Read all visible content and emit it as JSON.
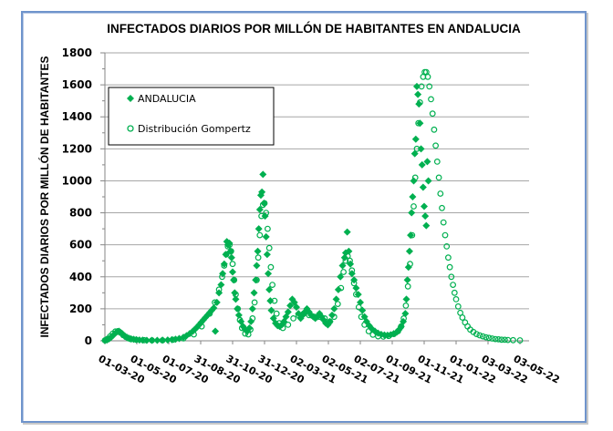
{
  "chart_data": {
    "type": "scatter",
    "title": "INFECTADOS DIARIOS POR MILLÓN DE HABITANTES EN ANDALUCIA",
    "xlabel": "",
    "ylabel": "INFECTADOS DIARIOS POR MILLÓN DE HABITANTES",
    "x_unit": "days since 01-03-20",
    "xlim": [
      0,
      793
    ],
    "ylim": [
      0,
      1800
    ],
    "yticks": [
      0,
      200,
      400,
      600,
      800,
      1000,
      1200,
      1400,
      1600,
      1800
    ],
    "ytick_labels": [
      "0",
      "200",
      "400",
      "600",
      "800",
      "1000",
      "1200",
      "1400",
      "1600",
      "1800"
    ],
    "xticks": [
      0,
      61,
      122,
      183,
      244,
      305,
      366,
      427,
      488,
      549,
      610,
      671,
      732,
      793
    ],
    "xtick_labels": [
      "01-03-20",
      "01-05-20",
      "01-07-20",
      "31-08-20",
      "31-10-20",
      "31-12-20",
      "02-03-21",
      "02-05-21",
      "02-07-21",
      "01-09-21",
      "01-11-21",
      "01-01-22",
      "03-03-22",
      "03-05-22"
    ],
    "grid": true,
    "legend_position": "top-left",
    "colors": {
      "series": "#00b050",
      "axis": "#868686",
      "grid": "#a6a6a6",
      "frame": "#6f94cc"
    },
    "series": [
      {
        "name": "ANDALUCIA",
        "marker": "diamond-filled",
        "points": [
          [
            0,
            2
          ],
          [
            4,
            5
          ],
          [
            8,
            12
          ],
          [
            12,
            22
          ],
          [
            16,
            35
          ],
          [
            20,
            48
          ],
          [
            24,
            58
          ],
          [
            27,
            60
          ],
          [
            30,
            52
          ],
          [
            34,
            42
          ],
          [
            38,
            30
          ],
          [
            42,
            22
          ],
          [
            46,
            16
          ],
          [
            50,
            12
          ],
          [
            55,
            9
          ],
          [
            60,
            7
          ],
          [
            66,
            5
          ],
          [
            72,
            4
          ],
          [
            80,
            3
          ],
          [
            90,
            3
          ],
          [
            100,
            3
          ],
          [
            110,
            4
          ],
          [
            120,
            5
          ],
          [
            128,
            7
          ],
          [
            135,
            10
          ],
          [
            142,
            14
          ],
          [
            150,
            22
          ],
          [
            156,
            32
          ],
          [
            162,
            45
          ],
          [
            168,
            60
          ],
          [
            172,
            72
          ],
          [
            176,
            85
          ],
          [
            180,
            100
          ],
          [
            184,
            115
          ],
          [
            188,
            130
          ],
          [
            192,
            145
          ],
          [
            196,
            160
          ],
          [
            200,
            175
          ],
          [
            204,
            190
          ],
          [
            208,
            205
          ],
          [
            211,
            60
          ],
          [
            214,
            240
          ],
          [
            218,
            300
          ],
          [
            222,
            350
          ],
          [
            225,
            420
          ],
          [
            228,
            480
          ],
          [
            231,
            540
          ],
          [
            233,
            620
          ],
          [
            235,
            600
          ],
          [
            238,
            610
          ],
          [
            240,
            560
          ],
          [
            242,
            520
          ],
          [
            244,
            430
          ],
          [
            246,
            380
          ],
          [
            248,
            300
          ],
          [
            250,
            260
          ],
          [
            253,
            200
          ],
          [
            256,
            160
          ],
          [
            260,
            120
          ],
          [
            264,
            90
          ],
          [
            268,
            70
          ],
          [
            272,
            60
          ],
          [
            276,
            80
          ],
          [
            279,
            120
          ],
          [
            282,
            200
          ],
          [
            285,
            300
          ],
          [
            288,
            380
          ],
          [
            290,
            470
          ],
          [
            292,
            560
          ],
          [
            294,
            700
          ],
          [
            296,
            820
          ],
          [
            298,
            910
          ],
          [
            300,
            930
          ],
          [
            302,
            1040
          ],
          [
            304,
            860
          ],
          [
            306,
            780
          ],
          [
            308,
            650
          ],
          [
            310,
            540
          ],
          [
            312,
            420
          ],
          [
            314,
            320
          ],
          [
            316,
            250
          ],
          [
            318,
            190
          ],
          [
            322,
            140
          ],
          [
            326,
            110
          ],
          [
            330,
            95
          ],
          [
            334,
            90
          ],
          [
            338,
            100
          ],
          [
            342,
            120
          ],
          [
            346,
            150
          ],
          [
            350,
            180
          ],
          [
            354,
            220
          ],
          [
            358,
            260
          ],
          [
            362,
            240
          ],
          [
            366,
            210
          ],
          [
            370,
            170
          ],
          [
            374,
            140
          ],
          [
            378,
            160
          ],
          [
            382,
            180
          ],
          [
            386,
            200
          ],
          [
            390,
            180
          ],
          [
            394,
            160
          ],
          [
            398,
            150
          ],
          [
            402,
            140
          ],
          [
            406,
            150
          ],
          [
            410,
            170
          ],
          [
            414,
            150
          ],
          [
            418,
            130
          ],
          [
            422,
            110
          ],
          [
            426,
            100
          ],
          [
            430,
            120
          ],
          [
            434,
            160
          ],
          [
            438,
            200
          ],
          [
            442,
            260
          ],
          [
            446,
            320
          ],
          [
            450,
            400
          ],
          [
            454,
            470
          ],
          [
            458,
            520
          ],
          [
            460,
            550
          ],
          [
            463,
            680
          ],
          [
            466,
            560
          ],
          [
            469,
            480
          ],
          [
            472,
            420
          ],
          [
            476,
            380
          ],
          [
            480,
            330
          ],
          [
            484,
            290
          ],
          [
            488,
            240
          ],
          [
            492,
            190
          ],
          [
            496,
            150
          ],
          [
            500,
            120
          ],
          [
            505,
            95
          ],
          [
            510,
            75
          ],
          [
            516,
            60
          ],
          [
            522,
            48
          ],
          [
            528,
            40
          ],
          [
            534,
            36
          ],
          [
            540,
            35
          ],
          [
            546,
            38
          ],
          [
            552,
            45
          ],
          [
            558,
            55
          ],
          [
            562,
            70
          ],
          [
            566,
            90
          ],
          [
            570,
            120
          ],
          [
            574,
            170
          ],
          [
            576,
            260
          ],
          [
            578,
            380
          ],
          [
            580,
            460
          ],
          [
            582,
            560
          ],
          [
            584,
            660
          ],
          [
            586,
            800
          ],
          [
            588,
            900
          ],
          [
            590,
            1000
          ],
          [
            592,
            1170
          ],
          [
            594,
            1260
          ],
          [
            596,
            1590
          ],
          [
            598,
            1540
          ],
          [
            600,
            1480
          ],
          [
            602,
            1360
          ],
          [
            604,
            1200
          ],
          [
            606,
            1100
          ],
          [
            608,
            960
          ],
          [
            610,
            840
          ],
          [
            612,
            780
          ],
          [
            614,
            720
          ],
          [
            616,
            1120
          ],
          [
            618,
            1000
          ]
        ]
      },
      {
        "name": "Distribución Gompertz",
        "marker": "circle-open",
        "points": [
          [
            0,
            3
          ],
          [
            5,
            12
          ],
          [
            10,
            28
          ],
          [
            15,
            45
          ],
          [
            20,
            58
          ],
          [
            25,
            60
          ],
          [
            30,
            50
          ],
          [
            35,
            35
          ],
          [
            40,
            24
          ],
          [
            45,
            16
          ],
          [
            50,
            10
          ],
          [
            60,
            6
          ],
          [
            75,
            4
          ],
          [
            90,
            3
          ],
          [
            110,
            3
          ],
          [
            130,
            6
          ],
          [
            150,
            15
          ],
          [
            170,
            40
          ],
          [
            185,
            90
          ],
          [
            200,
            170
          ],
          [
            210,
            240
          ],
          [
            218,
            320
          ],
          [
            224,
            400
          ],
          [
            228,
            470
          ],
          [
            232,
            540
          ],
          [
            235,
            590
          ],
          [
            238,
            600
          ],
          [
            241,
            560
          ],
          [
            244,
            480
          ],
          [
            247,
            380
          ],
          [
            250,
            290
          ],
          [
            254,
            200
          ],
          [
            258,
            130
          ],
          [
            262,
            80
          ],
          [
            268,
            45
          ],
          [
            274,
            40
          ],
          [
            278,
            70
          ],
          [
            282,
            140
          ],
          [
            286,
            240
          ],
          [
            290,
            380
          ],
          [
            293,
            520
          ],
          [
            296,
            660
          ],
          [
            299,
            780
          ],
          [
            302,
            850
          ],
          [
            305,
            860
          ],
          [
            308,
            800
          ],
          [
            311,
            700
          ],
          [
            314,
            580
          ],
          [
            317,
            460
          ],
          [
            320,
            350
          ],
          [
            324,
            250
          ],
          [
            328,
            170
          ],
          [
            333,
            110
          ],
          [
            340,
            80
          ],
          [
            350,
            100
          ],
          [
            360,
            140
          ],
          [
            370,
            160
          ],
          [
            380,
            170
          ],
          [
            390,
            160
          ],
          [
            400,
            150
          ],
          [
            410,
            150
          ],
          [
            420,
            140
          ],
          [
            430,
            120
          ],
          [
            438,
            150
          ],
          [
            445,
            230
          ],
          [
            451,
            330
          ],
          [
            456,
            430
          ],
          [
            460,
            500
          ],
          [
            464,
            530
          ],
          [
            468,
            500
          ],
          [
            472,
            440
          ],
          [
            476,
            360
          ],
          [
            480,
            290
          ],
          [
            485,
            210
          ],
          [
            490,
            150
          ],
          [
            496,
            100
          ],
          [
            504,
            60
          ],
          [
            512,
            38
          ],
          [
            522,
            28
          ],
          [
            532,
            26
          ],
          [
            542,
            30
          ],
          [
            552,
            42
          ],
          [
            560,
            60
          ],
          [
            566,
            90
          ],
          [
            571,
            140
          ],
          [
            575,
            220
          ],
          [
            579,
            340
          ],
          [
            583,
            480
          ],
          [
            587,
            660
          ],
          [
            590,
            840
          ],
          [
            593,
            1020
          ],
          [
            596,
            1200
          ],
          [
            599,
            1360
          ],
          [
            602,
            1490
          ],
          [
            605,
            1590
          ],
          [
            608,
            1650
          ],
          [
            611,
            1680
          ],
          [
            614,
            1680
          ],
          [
            617,
            1650
          ],
          [
            620,
            1590
          ],
          [
            623,
            1510
          ],
          [
            626,
            1420
          ],
          [
            629,
            1320
          ],
          [
            632,
            1220
          ],
          [
            635,
            1120
          ],
          [
            638,
            1020
          ],
          [
            641,
            920
          ],
          [
            644,
            830
          ],
          [
            647,
            740
          ],
          [
            650,
            660
          ],
          [
            653,
            590
          ],
          [
            656,
            520
          ],
          [
            659,
            460
          ],
          [
            662,
            400
          ],
          [
            665,
            350
          ],
          [
            668,
            300
          ],
          [
            671,
            260
          ],
          [
            675,
            215
          ],
          [
            679,
            175
          ],
          [
            683,
            145
          ],
          [
            688,
            115
          ],
          [
            693,
            90
          ],
          [
            698,
            70
          ],
          [
            704,
            55
          ],
          [
            710,
            42
          ],
          [
            716,
            34
          ],
          [
            722,
            28
          ],
          [
            728,
            22
          ],
          [
            734,
            18
          ],
          [
            740,
            14
          ],
          [
            746,
            11
          ],
          [
            752,
            9
          ],
          [
            758,
            7
          ],
          [
            764,
            6
          ],
          [
            770,
            5
          ],
          [
            780,
            4
          ],
          [
            793,
            3
          ]
        ]
      }
    ]
  }
}
